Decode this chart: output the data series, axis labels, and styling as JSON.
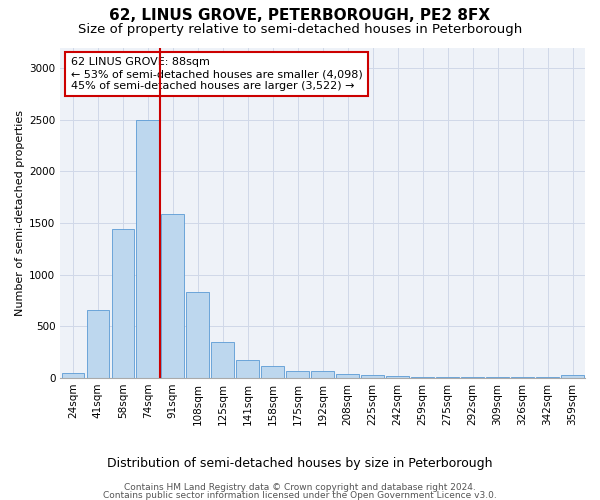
{
  "title": "62, LINUS GROVE, PETERBOROUGH, PE2 8FX",
  "subtitle": "Size of property relative to semi-detached houses in Peterborough",
  "xlabel": "Distribution of semi-detached houses by size in Peterborough",
  "ylabel": "Number of semi-detached properties",
  "categories": [
    "24sqm",
    "41sqm",
    "58sqm",
    "74sqm",
    "91sqm",
    "108sqm",
    "125sqm",
    "141sqm",
    "158sqm",
    "175sqm",
    "192sqm",
    "208sqm",
    "225sqm",
    "242sqm",
    "259sqm",
    "275sqm",
    "292sqm",
    "309sqm",
    "326sqm",
    "342sqm",
    "359sqm"
  ],
  "values": [
    45,
    660,
    1440,
    2500,
    1590,
    830,
    350,
    175,
    115,
    65,
    65,
    40,
    25,
    20,
    5,
    5,
    5,
    5,
    5,
    5,
    25
  ],
  "bar_color": "#bdd7ee",
  "bar_edge_color": "#5b9bd5",
  "highlight_line_color": "#cc0000",
  "annotation_box_color": "#ffffff",
  "annotation_box_edge_color": "#cc0000",
  "annotation_text": "62 LINUS GROVE: 88sqm\n← 53% of semi-detached houses are smaller (4,098)\n45% of semi-detached houses are larger (3,522) →",
  "ylim": [
    0,
    3200
  ],
  "yticks": [
    0,
    500,
    1000,
    1500,
    2000,
    2500,
    3000
  ],
  "grid_color": "#d0d8e8",
  "background_color": "#eef2f8",
  "footer_line1": "Contains HM Land Registry data © Crown copyright and database right 2024.",
  "footer_line2": "Contains public sector information licensed under the Open Government Licence v3.0.",
  "title_fontsize": 11,
  "subtitle_fontsize": 9.5,
  "xlabel_fontsize": 9,
  "ylabel_fontsize": 8,
  "tick_fontsize": 7.5,
  "annotation_fontsize": 8,
  "footer_fontsize": 6.5
}
